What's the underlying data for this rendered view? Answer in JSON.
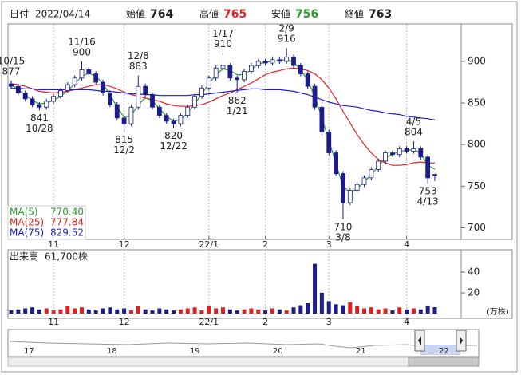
{
  "header": {
    "fields": [
      {
        "label": "日付",
        "value": "2022/04/14"
      },
      {
        "label": "始値",
        "value": 764
      },
      {
        "label": "高値",
        "value": 765
      },
      {
        "label": "安値",
        "value": 756
      },
      {
        "label": "終値",
        "value": 763
      }
    ]
  },
  "chart_data": {
    "type": "candlestick",
    "categories": [
      "10/15",
      null,
      null,
      null,
      "10/28",
      null,
      null,
      null,
      null,
      null,
      "11/16",
      null,
      null,
      null,
      null,
      null,
      "12/2",
      null,
      "12/8",
      null,
      null,
      null,
      null,
      "12/22",
      null,
      null,
      null,
      null,
      null,
      null,
      "1/17",
      null,
      "1/21",
      null,
      null,
      null,
      null,
      null,
      null,
      "2/9",
      null,
      null,
      null,
      null,
      null,
      null,
      null,
      "3/8",
      null,
      null,
      null,
      null,
      null,
      null,
      null,
      null,
      null,
      "4/5",
      null,
      "4/13",
      null
    ],
    "month_labels": [
      null,
      null,
      null,
      null,
      null,
      null,
      "11",
      null,
      null,
      null,
      null,
      null,
      null,
      null,
      null,
      null,
      "12",
      null,
      null,
      null,
      null,
      null,
      null,
      null,
      null,
      null,
      null,
      null,
      "22/1",
      null,
      null,
      null,
      null,
      null,
      null,
      null,
      "2",
      null,
      null,
      null,
      null,
      null,
      null,
      null,
      null,
      "3",
      null,
      null,
      null,
      null,
      null,
      null,
      null,
      null,
      null,
      null,
      "4",
      null,
      null,
      null,
      null
    ],
    "open": [
      873,
      870,
      862,
      855,
      848,
      845,
      852,
      858,
      865,
      872,
      880,
      890,
      885,
      875,
      862,
      848,
      832,
      825,
      845,
      870,
      860,
      845,
      835,
      828,
      825,
      835,
      845,
      858,
      868,
      880,
      892,
      895,
      880,
      878,
      888,
      895,
      900,
      898,
      902,
      900,
      905,
      895,
      885,
      870,
      845,
      815,
      790,
      765,
      730,
      745,
      752,
      760,
      770,
      780,
      790,
      788,
      795,
      792,
      795,
      785,
      764
    ],
    "high": [
      877,
      873,
      865,
      858,
      851,
      855,
      861,
      868,
      875,
      883,
      900,
      893,
      888,
      878,
      865,
      851,
      835,
      848,
      883,
      873,
      863,
      848,
      838,
      831,
      838,
      848,
      861,
      871,
      883,
      895,
      910,
      898,
      883,
      891,
      898,
      903,
      903,
      905,
      905,
      916,
      908,
      898,
      888,
      873,
      848,
      818,
      793,
      768,
      748,
      755,
      763,
      773,
      783,
      793,
      793,
      798,
      798,
      804,
      798,
      788,
      765
    ],
    "low": [
      867,
      859,
      852,
      845,
      841,
      842,
      849,
      855,
      862,
      869,
      877,
      882,
      872,
      859,
      845,
      829,
      815,
      822,
      842,
      857,
      842,
      832,
      825,
      820,
      822,
      832,
      842,
      855,
      865,
      877,
      889,
      877,
      862,
      875,
      885,
      892,
      895,
      895,
      897,
      897,
      892,
      882,
      867,
      842,
      812,
      787,
      762,
      710,
      727,
      742,
      749,
      757,
      767,
      777,
      785,
      785,
      789,
      789,
      782,
      753,
      756
    ],
    "close": [
      870,
      862,
      855,
      848,
      845,
      852,
      858,
      865,
      872,
      880,
      890,
      885,
      875,
      862,
      848,
      832,
      825,
      845,
      870,
      860,
      845,
      835,
      828,
      825,
      835,
      845,
      858,
      868,
      880,
      892,
      895,
      880,
      878,
      888,
      895,
      900,
      898,
      902,
      900,
      905,
      895,
      885,
      870,
      845,
      815,
      790,
      765,
      730,
      745,
      752,
      760,
      770,
      780,
      790,
      788,
      795,
      792,
      795,
      785,
      760,
      763
    ],
    "up_color": "#ffffff",
    "down_color": "#1c1c8c",
    "series": [
      {
        "name": "MA(5)",
        "color": "#2e9a2e",
        "last_label": "770.40",
        "values": [
          872,
          866,
          860,
          853,
          849,
          850,
          853,
          858,
          865,
          873,
          882,
          886,
          882,
          873,
          860,
          845,
          833,
          835,
          848,
          856,
          853,
          843,
          834,
          828,
          830,
          838,
          849,
          861,
          873,
          884,
          891,
          889,
          884,
          884,
          890,
          897,
          899,
          900,
          901,
          902,
          899,
          890,
          877,
          858,
          832,
          805,
          777,
          750,
          742,
          747,
          755,
          764,
          774,
          784,
          788,
          792,
          793,
          794,
          790,
          775,
          770.4
        ]
      },
      {
        "name": "MA(25)",
        "color": "#e02020",
        "last_label": "777.84",
        "values": [
          873,
          872,
          870,
          867,
          864,
          863,
          862,
          863,
          864,
          866,
          868,
          870,
          872,
          872,
          870,
          867,
          863,
          860,
          858,
          856,
          854,
          852,
          849,
          847,
          846,
          846,
          847,
          848,
          851,
          855,
          859,
          862,
          866,
          870,
          874,
          879,
          884,
          887,
          889,
          891,
          892,
          891,
          889,
          885,
          878,
          868,
          855,
          840,
          826,
          812,
          800,
          790,
          782,
          778,
          775,
          775,
          776,
          778,
          779,
          778,
          777.84
        ]
      },
      {
        "name": "MA(75)",
        "color": "#2020d0",
        "last_label": "829.52",
        "values": [
          868,
          868,
          867,
          867,
          866,
          866,
          866,
          866,
          866,
          866,
          866,
          866,
          865,
          864,
          864,
          863,
          862,
          861,
          861,
          860,
          860,
          859,
          859,
          859,
          859,
          859,
          860,
          860,
          861,
          862,
          863,
          864,
          865,
          866,
          867,
          867,
          866,
          866,
          866,
          865,
          864,
          862,
          860,
          857,
          854,
          851,
          849,
          847,
          846,
          845,
          843,
          841,
          840,
          838,
          837,
          836,
          834,
          833,
          832,
          831,
          829.52
        ]
      }
    ],
    "ylim": [
      686,
      945
    ],
    "yticks": [
      700,
      750,
      800,
      850,
      900
    ],
    "grid": true,
    "volume": {
      "label": "出来高",
      "value_label": "61,700株",
      "unit": "(万株)",
      "values": [
        3,
        4,
        5,
        6,
        4,
        5,
        3,
        4,
        7,
        5,
        6,
        4,
        3,
        5,
        6,
        4,
        5,
        3,
        7,
        4,
        3,
        5,
        4,
        3,
        4,
        5,
        6,
        3,
        7,
        5,
        6,
        4,
        3,
        4,
        5,
        4,
        3,
        5,
        4,
        3,
        6,
        8,
        10,
        48,
        20,
        12,
        9,
        8,
        11,
        7,
        5,
        6,
        4,
        5,
        3,
        6,
        4,
        5,
        4,
        7,
        6.17
      ],
      "up_color": "#e02020",
      "down_color": "#1c1c8c",
      "ylim": [
        0,
        60
      ],
      "yticks": [
        20,
        40
      ]
    },
    "navigator": {
      "labels": [
        "17",
        "18",
        "19",
        "20",
        "21",
        "22"
      ]
    }
  }
}
